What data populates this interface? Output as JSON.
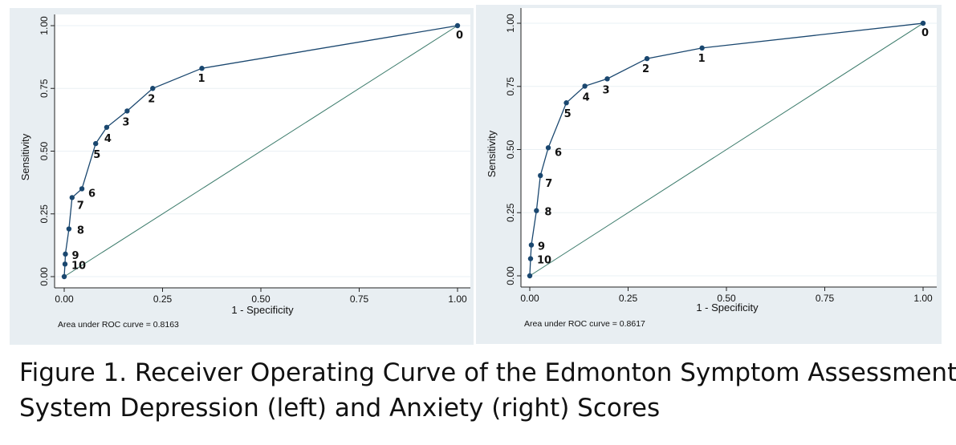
{
  "chart_data": [
    {
      "type": "line",
      "panel": "left",
      "xlabel": "1 - Specificity",
      "ylabel": "Sensitivity",
      "xlim": [
        0,
        1
      ],
      "ylim": [
        0,
        1
      ],
      "xticks": [
        "0.00",
        "0.25",
        "0.50",
        "0.75",
        "1.00"
      ],
      "yticks": [
        "0.00",
        "0.25",
        "0.50",
        "0.75",
        "1.00"
      ],
      "grid": true,
      "annotation": "Area under ROC curve = 0.8163",
      "points": [
        {
          "x": 0.0,
          "y": 0.0,
          "label": ""
        },
        {
          "x": 0.002,
          "y": 0.05,
          "label": "10"
        },
        {
          "x": 0.003,
          "y": 0.09,
          "label": "9"
        },
        {
          "x": 0.012,
          "y": 0.19,
          "label": "8"
        },
        {
          "x": 0.02,
          "y": 0.315,
          "label": "7"
        },
        {
          "x": 0.045,
          "y": 0.35,
          "label": "6"
        },
        {
          "x": 0.08,
          "y": 0.53,
          "label": "5"
        },
        {
          "x": 0.108,
          "y": 0.595,
          "label": "4"
        },
        {
          "x": 0.16,
          "y": 0.66,
          "label": "3"
        },
        {
          "x": 0.225,
          "y": 0.75,
          "label": "2"
        },
        {
          "x": 0.35,
          "y": 0.83,
          "label": "1"
        },
        {
          "x": 1.0,
          "y": 1.0,
          "label": "0"
        }
      ]
    },
    {
      "type": "line",
      "panel": "right",
      "xlabel": "1 - Specificity",
      "ylabel": "Sensitivity",
      "xlim": [
        0,
        1
      ],
      "ylim": [
        0,
        1
      ],
      "xticks": [
        "0.00",
        "0.25",
        "0.50",
        "0.75",
        "1.00"
      ],
      "yticks": [
        "0.00",
        "0.25",
        "0.50",
        "0.75",
        "1.00"
      ],
      "grid": true,
      "annotation": "Area under ROC curve = 0.8617",
      "points": [
        {
          "x": 0.0,
          "y": 0.0,
          "label": ""
        },
        {
          "x": 0.002,
          "y": 0.068,
          "label": "10"
        },
        {
          "x": 0.004,
          "y": 0.122,
          "label": "9"
        },
        {
          "x": 0.017,
          "y": 0.258,
          "label": "8"
        },
        {
          "x": 0.027,
          "y": 0.397,
          "label": "7"
        },
        {
          "x": 0.047,
          "y": 0.507,
          "label": "6"
        },
        {
          "x": 0.093,
          "y": 0.685,
          "label": "5"
        },
        {
          "x": 0.14,
          "y": 0.751,
          "label": "4"
        },
        {
          "x": 0.197,
          "y": 0.78,
          "label": "3"
        },
        {
          "x": 0.298,
          "y": 0.86,
          "label": "2"
        },
        {
          "x": 0.438,
          "y": 0.902,
          "label": "1"
        },
        {
          "x": 1.0,
          "y": 1.0,
          "label": "0"
        }
      ]
    }
  ],
  "caption": {
    "line1": "Figure 1. Receiver Operating Curve of the Edmonton Symptom Assessment",
    "line2": "System Depression (left) and Anxiety (right) Scores"
  },
  "colors": {
    "panel_bg": "#e8eef2",
    "plot_bg": "#ffffff",
    "line": "#1a476f",
    "reference_line": "#3a7a6a",
    "grid": "#eaf0f4"
  }
}
